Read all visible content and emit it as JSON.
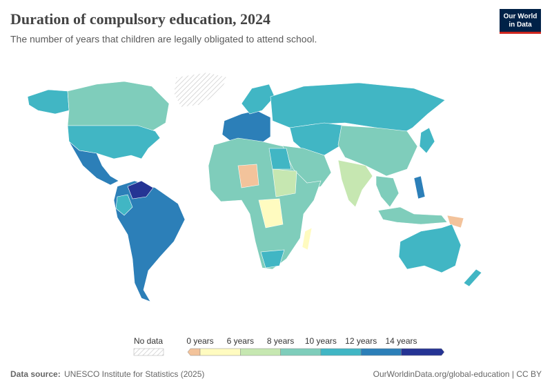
{
  "header": {
    "title": "Duration of compulsory education, 2024",
    "subtitle": "The number of years that children are legally obligated to attend school.",
    "logo": [
      "Our World",
      "in Data"
    ]
  },
  "legend": {
    "no_data_label": "No data",
    "ticks": [
      "0 years",
      "6 years",
      "8 years",
      "10 years",
      "12 years",
      "14 years"
    ],
    "colors": [
      "#f3c39b",
      "#fffbc0",
      "#c6e7b1",
      "#7fcdbb",
      "#41b6c4",
      "#2c7fb8",
      "#253494"
    ]
  },
  "footer": {
    "source_label": "Data source:",
    "source": "UNESCO Institute for Statistics (2025)",
    "url": "OurWorldinData.org/global-education | CC BY"
  }
}
